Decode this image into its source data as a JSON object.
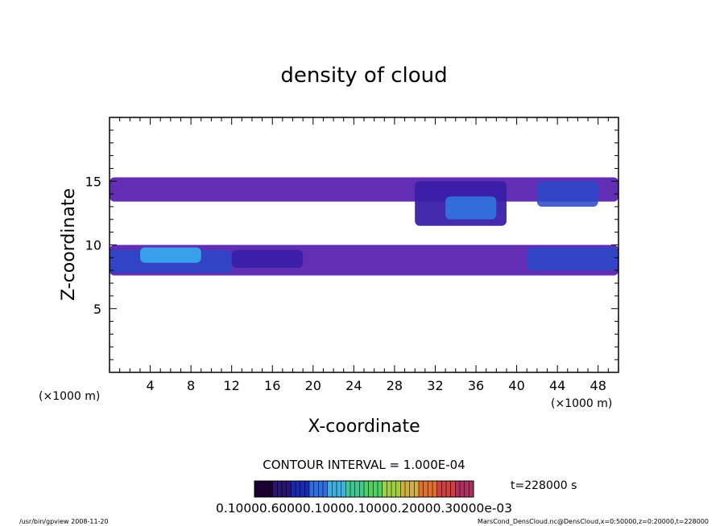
{
  "chart_data": {
    "type": "heatmap",
    "title": "density of cloud",
    "xlabel": "X-coordinate",
    "ylabel": "Z-coordinate",
    "x_unit": "(×1000 m)",
    "y_unit": "(×1000 m)",
    "xlim": [
      0,
      50
    ],
    "ylim": [
      0,
      20
    ],
    "x_ticks": [
      4,
      8,
      12,
      16,
      20,
      24,
      28,
      32,
      36,
      40,
      44,
      48
    ],
    "y_ticks": [
      5,
      10,
      15
    ],
    "contour_interval": "CONTOUR INTERVAL = 1.000E-04",
    "time_label": "t=228000 s",
    "colorbar_labels": "0.10000.60000.10000.10000.20000.30000e-03",
    "colorbar_colors": [
      "#1a0033",
      "#2a1570",
      "#1a2ab0",
      "#2f6fe0",
      "#3fb0e0",
      "#40c890",
      "#50d060",
      "#a0d040",
      "#d0b040",
      "#e07030",
      "#d04040",
      "#b03060"
    ],
    "footer_left": "/usr/bin/gpview   2008-11-20",
    "footer_right": "MarsCond_DensCloud.nc@DensCloud,x=0:50000,z=0:20000,t=228000",
    "regions": [
      {
        "x0": 0,
        "x1": 50,
        "z0": 13.4,
        "z1": 15.3,
        "level": 1
      },
      {
        "x0": 0,
        "x1": 50,
        "z0": 7.6,
        "z1": 10.0,
        "level": 1
      },
      {
        "x0": 0,
        "x1": 12,
        "z0": 7.8,
        "z1": 9.6,
        "level": 3
      },
      {
        "x0": 3,
        "x1": 9,
        "z0": 8.6,
        "z1": 9.8,
        "level": 5
      },
      {
        "x0": 12,
        "x1": 19,
        "z0": 8.2,
        "z1": 9.6,
        "level": 2
      },
      {
        "x0": 30,
        "x1": 39,
        "z0": 11.5,
        "z1": 15.0,
        "level": 2
      },
      {
        "x0": 33,
        "x1": 38,
        "z0": 12.0,
        "z1": 13.8,
        "level": 4
      },
      {
        "x0": 41,
        "x1": 50,
        "z0": 8.0,
        "z1": 9.8,
        "level": 3
      },
      {
        "x0": 42,
        "x1": 48,
        "z0": 13.0,
        "z1": 15.0,
        "level": 3
      }
    ]
  }
}
